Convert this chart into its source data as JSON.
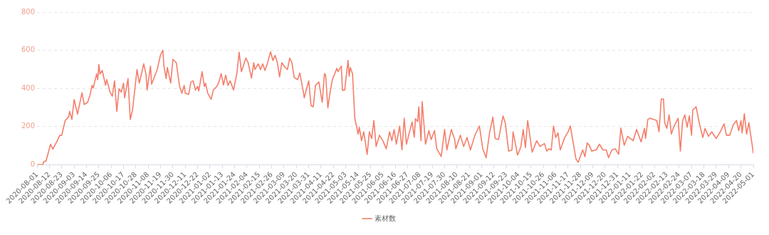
{
  "chart_data": {
    "type": "line",
    "xlim": [
      "2020-08-01",
      "2022-05-01"
    ],
    "ylim": [
      0,
      800
    ],
    "yticks": [
      0,
      200,
      400,
      600,
      800
    ],
    "xticks": [
      "2020-08-01",
      "2020-08-12",
      "2020-08-23",
      "2020-09-03",
      "2020-09-14",
      "2020-09-25",
      "2020-10-06",
      "2020-10-17",
      "2020-10-28",
      "2020-11-08",
      "2020-11-19",
      "2020-11-30",
      "2020-12-11",
      "2020-12-22",
      "2021-01-02",
      "2021-01-13",
      "2021-01-24",
      "2021-02-04",
      "2021-02-15",
      "2021-02-26",
      "2021-03-09",
      "2021-03-20",
      "2021-03-31",
      "2021-04-11",
      "2021-04-22",
      "2021-05-03",
      "2021-05-14",
      "2021-05-25",
      "2021-06-05",
      "2021-06-16",
      "2021-06-27",
      "2021-07-08",
      "2021-07-19",
      "2021-07-30",
      "2021-08-10",
      "2021-08-21",
      "2021-09-01",
      "2021-09-12",
      "2021-09-23",
      "2021-10-04",
      "2021-10-15",
      "2021-10-26",
      "2021-11-06",
      "2021-11-17",
      "2021-11-28",
      "2021-12-09",
      "2021-12-20",
      "2021-12-31",
      "2022-01-11",
      "2022-01-22",
      "2022-02-02",
      "2022-02-13",
      "2022-02-24",
      "2022-03-07",
      "2022-03-18",
      "2022-03-29",
      "2022-04-09",
      "2022-04-20",
      "2022-05-01"
    ],
    "grid": "y",
    "legend": "bottom",
    "marker": "none",
    "line_style": "solid",
    "series": [
      {
        "name": "素材数",
        "color": "#f47e6a",
        "x": [
          "2020-08-01",
          "2020-08-06",
          "2020-08-07",
          "2020-08-09",
          "2020-08-13",
          "2020-08-15",
          "2020-08-19",
          "2020-08-21",
          "2020-08-23",
          "2020-08-26",
          "2020-08-29",
          "2020-08-30",
          "2020-09-01",
          "2020-09-03",
          "2020-09-06",
          "2020-09-10",
          "2020-09-12",
          "2020-09-15",
          "2020-09-17",
          "2020-09-19",
          "2020-09-20",
          "2020-09-23",
          "2020-09-24",
          "2020-09-25",
          "2020-09-26",
          "2020-09-28",
          "2020-10-01",
          "2020-10-02",
          "2020-10-05",
          "2020-10-07",
          "2020-10-09",
          "2020-10-11",
          "2020-10-13",
          "2020-10-15",
          "2020-10-17",
          "2020-10-18",
          "2020-10-21",
          "2020-10-23",
          "2020-10-25",
          "2020-10-29",
          "2020-10-31",
          "2020-11-04",
          "2020-11-06",
          "2020-11-07",
          "2020-11-10",
          "2020-11-11",
          "2020-11-16",
          "2020-11-19",
          "2020-11-21",
          "2020-11-22",
          "2020-11-24",
          "2020-11-25",
          "2020-11-28",
          "2020-11-30",
          "2020-12-03",
          "2020-12-06",
          "2020-12-08",
          "2020-12-10",
          "2020-12-11",
          "2020-12-14",
          "2020-12-16",
          "2020-12-18",
          "2020-12-20",
          "2020-12-22",
          "2020-12-23",
          "2020-12-26",
          "2020-12-28",
          "2020-12-29",
          "2020-12-31",
          "2021-01-03",
          "2021-01-05",
          "2021-01-08",
          "2021-01-10",
          "2021-01-12",
          "2021-01-14",
          "2021-01-16",
          "2021-01-18",
          "2021-01-20",
          "2021-01-23",
          "2021-01-26",
          "2021-01-28",
          "2021-01-30",
          "2021-02-03",
          "2021-02-05",
          "2021-02-08",
          "2021-02-10",
          "2021-02-11",
          "2021-02-14",
          "2021-02-16",
          "2021-02-18",
          "2021-02-20",
          "2021-02-22",
          "2021-02-25",
          "2021-02-27",
          "2021-03-01",
          "2021-03-03",
          "2021-03-05",
          "2021-03-07",
          "2021-03-10",
          "2021-03-12",
          "2021-03-14",
          "2021-03-16",
          "2021-03-18",
          "2021-03-21",
          "2021-03-23",
          "2021-03-26",
          "2021-03-27",
          "2021-03-29",
          "2021-03-31",
          "2021-04-02",
          "2021-04-04",
          "2021-04-06",
          "2021-04-09",
          "2021-04-12",
          "2021-04-14",
          "2021-04-15",
          "2021-04-17",
          "2021-04-19",
          "2021-04-21",
          "2021-04-25",
          "2021-04-26",
          "2021-04-29",
          "2021-04-30",
          "2021-05-02",
          "2021-05-05",
          "2021-05-06",
          "2021-05-07",
          "2021-05-09",
          "2021-05-11",
          "2021-05-14",
          "2021-05-15",
          "2021-05-17",
          "2021-05-19",
          "2021-05-22",
          "2021-05-24",
          "2021-05-26",
          "2021-05-28",
          "2021-05-30",
          "2021-06-02",
          "2021-06-05",
          "2021-06-08",
          "2021-06-11",
          "2021-06-13",
          "2021-06-15",
          "2021-06-17",
          "2021-06-20",
          "2021-06-22",
          "2021-06-24",
          "2021-06-26",
          "2021-06-28",
          "2021-07-01",
          "2021-07-03",
          "2021-07-04",
          "2021-07-06",
          "2021-07-07",
          "2021-07-09",
          "2021-07-10",
          "2021-07-13",
          "2021-07-16",
          "2021-07-18",
          "2021-07-21",
          "2021-07-23",
          "2021-07-27",
          "2021-07-30",
          "2021-08-01",
          "2021-08-05",
          "2021-08-08",
          "2021-08-09",
          "2021-08-13",
          "2021-08-16",
          "2021-08-19",
          "2021-08-22",
          "2021-08-26",
          "2021-08-30",
          "2021-09-02",
          "2021-09-05",
          "2021-09-08",
          "2021-09-11",
          "2021-09-13",
          "2021-09-16",
          "2021-09-20",
          "2021-09-22",
          "2021-09-25",
          "2021-09-28",
          "2021-09-29",
          "2021-10-03",
          "2021-10-06",
          "2021-10-08",
          "2021-10-10",
          "2021-10-12",
          "2021-10-16",
          "2021-10-20",
          "2021-10-23",
          "2021-10-27",
          "2021-10-29",
          "2021-10-31",
          "2021-11-02",
          "2021-11-04",
          "2021-11-06",
          "2021-11-08",
          "2021-11-10",
          "2021-11-14",
          "2021-11-17",
          "2021-11-19",
          "2021-11-24",
          "2021-11-26",
          "2021-11-30",
          "2021-12-02",
          "2021-12-04",
          "2021-12-06",
          "2021-12-08",
          "2021-12-12",
          "2021-12-15",
          "2021-12-18",
          "2021-12-21",
          "2021-12-23",
          "2021-12-26",
          "2021-12-29",
          "2022-01-01",
          "2022-01-03",
          "2022-01-06",
          "2022-01-09",
          "2022-01-14",
          "2022-01-17",
          "2022-01-21",
          "2022-01-24",
          "2022-01-25",
          "2022-01-27",
          "2022-01-29",
          "2022-02-04",
          "2022-02-06",
          "2022-02-08",
          "2022-02-10",
          "2022-02-11",
          "2022-02-13",
          "2022-02-15",
          "2022-02-17",
          "2022-02-19",
          "2022-02-23",
          "2022-02-25",
          "2022-02-27",
          "2022-03-01",
          "2022-03-03",
          "2022-03-05",
          "2022-03-07",
          "2022-03-08",
          "2022-03-11",
          "2022-03-14",
          "2022-03-17",
          "2022-03-19",
          "2022-03-22",
          "2022-03-25",
          "2022-03-29",
          "2022-04-01",
          "2022-04-05",
          "2022-04-07",
          "2022-04-10",
          "2022-04-13",
          "2022-04-16",
          "2022-04-18",
          "2022-04-20",
          "2022-04-21",
          "2022-04-23",
          "2022-04-25",
          "2022-04-27",
          "2022-04-29",
          "2022-05-01"
        ],
        "values": [
          0,
          0,
          17,
          20,
          108,
          82,
          126,
          153,
          155,
          232,
          250,
          280,
          238,
          342,
          266,
          377,
          316,
          327,
          363,
          416,
          402,
          476,
          446,
          526,
          476,
          494,
          416,
          446,
          381,
          359,
          440,
          280,
          398,
          381,
          428,
          351,
          452,
          238,
          286,
          499,
          428,
          529,
          476,
          392,
          517,
          422,
          499,
          577,
          600,
          517,
          452,
          510,
          428,
          553,
          535,
          410,
          375,
          416,
          375,
          369,
          434,
          440,
          392,
          410,
          387,
          488,
          410,
          428,
          375,
          343,
          392,
          410,
          434,
          478,
          418,
          470,
          416,
          440,
          392,
          481,
          590,
          488,
          559,
          535,
          454,
          535,
          499,
          529,
          499,
          529,
          494,
          529,
          592,
          547,
          573,
          535,
          461,
          535,
          510,
          499,
          559,
          535,
          458,
          446,
          481,
          387,
          351,
          398,
          440,
          310,
          304,
          416,
          434,
          327,
          478,
          470,
          298,
          381,
          446,
          505,
          488,
          517,
          390,
          392,
          547,
          464,
          510,
          476,
          244,
          161,
          197,
          126,
          173,
          54,
          173,
          138,
          232,
          96,
          155,
          126,
          84,
          173,
          126,
          185,
          108,
          203,
          78,
          244,
          108,
          155,
          224,
          144,
          241,
          227,
          304,
          126,
          331,
          108,
          179,
          132,
          179,
          84,
          43,
          185,
          78,
          185,
          132,
          84,
          155,
          96,
          143,
          78,
          155,
          203,
          84,
          37,
          167,
          250,
          138,
          132,
          256,
          221,
          72,
          78,
          173,
          51,
          96,
          185,
          90,
          232,
          66,
          126,
          96,
          111,
          72,
          84,
          78,
          203,
          143,
          167,
          78,
          143,
          173,
          203,
          31,
          13,
          78,
          43,
          114,
          102,
          72,
          78,
          108,
          78,
          78,
          37,
          78,
          84,
          55,
          193,
          102,
          149,
          126,
          185,
          120,
          191,
          138,
          238,
          244,
          232,
          173,
          345,
          345,
          221,
          191,
          262,
          161,
          197,
          244,
          72,
          232,
          262,
          197,
          256,
          155,
          286,
          304,
          215,
          143,
          191,
          149,
          173,
          138,
          167,
          215,
          155,
          155,
          209,
          232,
          179,
          232,
          167,
          268,
          161,
          221,
          143,
          60
        ]
      }
    ]
  }
}
